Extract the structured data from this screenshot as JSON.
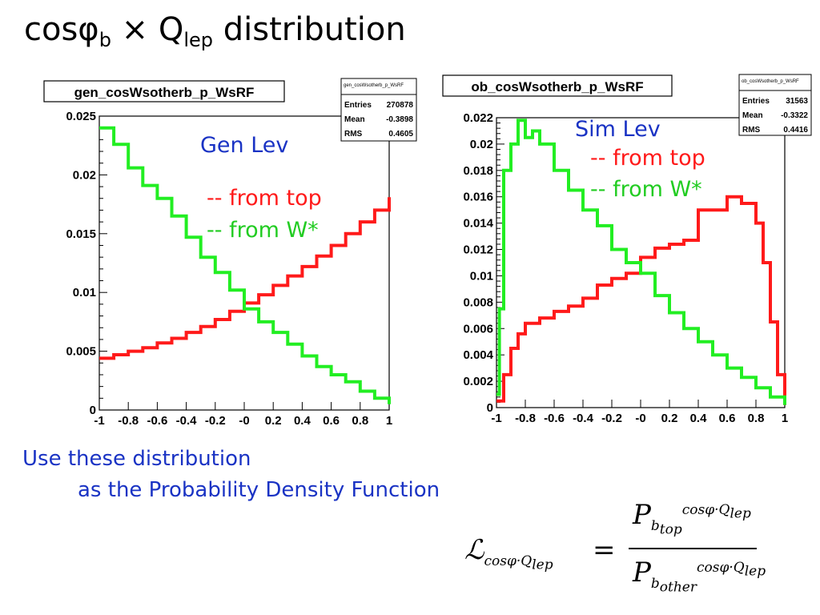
{
  "slide": {
    "title_main": "cosφ",
    "title_sub": "b",
    "title_x": " × Q",
    "title_sub2": "lep",
    "title_rest": " distribution",
    "body_line1": "Use these distribution",
    "body_line2": "as the Probability Density Function"
  },
  "colors": {
    "top": "#ff1a1a",
    "wstar": "#22ee22",
    "label_blue": "#1a33c4"
  },
  "formula": {
    "lhs": "ℒ",
    "lhs_sub": "cosφ·Q",
    "lhs_sub2": "lep",
    "eq": "=",
    "num_base": "P",
    "num_sup": "cosφ·Q",
    "num_sup2": "lep",
    "num_sub": "b",
    "num_sub2": "top",
    "den_base": "P",
    "den_sup": "cosφ·Q",
    "den_sup2": "lep",
    "den_sub": "b",
    "den_sub2": "other"
  },
  "chart_data": [
    {
      "type": "line",
      "title": "gen_cosWsotherb_p_WsRF",
      "annotation": "Gen Lev",
      "legend": [
        "-- from top",
        "-- from W*"
      ],
      "stats": {
        "name": "gen_cosWsotherb_p_WsRF",
        "rows": [
          [
            "Entries",
            "270878"
          ],
          [
            "Mean",
            "-0.3898"
          ],
          [
            "RMS",
            "0.4605"
          ]
        ]
      },
      "xlim": [
        -1,
        1
      ],
      "ylim": [
        0,
        0.025
      ],
      "xticks": [
        "-1",
        "-0.8",
        "-0.6",
        "-0.4",
        "-0.2",
        "-0",
        "0.2",
        "0.4",
        "0.6",
        "0.8",
        "1"
      ],
      "yticks": [
        "0",
        "0.005",
        "0.01",
        "0.015",
        "0.02",
        "0.025"
      ],
      "series": [
        {
          "name": "from top",
          "color": "#ff1a1a",
          "x": [
            -1,
            -0.9,
            -0.8,
            -0.7,
            -0.6,
            -0.5,
            -0.4,
            -0.3,
            -0.2,
            -0.1,
            0,
            0.1,
            0.2,
            0.3,
            0.4,
            0.5,
            0.6,
            0.7,
            0.8,
            0.9,
            1
          ],
          "values": [
            0.0044,
            0.0047,
            0.005,
            0.0053,
            0.0057,
            0.0061,
            0.0066,
            0.0071,
            0.0077,
            0.0084,
            0.0091,
            0.0098,
            0.0106,
            0.0114,
            0.0122,
            0.0131,
            0.014,
            0.015,
            0.016,
            0.017,
            0.0181
          ]
        },
        {
          "name": "from W*",
          "color": "#22ee22",
          "x": [
            -1,
            -0.9,
            -0.8,
            -0.7,
            -0.6,
            -0.5,
            -0.4,
            -0.3,
            -0.2,
            -0.1,
            0,
            0.1,
            0.2,
            0.3,
            0.4,
            0.5,
            0.6,
            0.7,
            0.8,
            0.9,
            1
          ],
          "values": [
            0.024,
            0.0226,
            0.0206,
            0.0191,
            0.018,
            0.0165,
            0.0147,
            0.013,
            0.0117,
            0.0102,
            0.0086,
            0.0075,
            0.0066,
            0.0056,
            0.0046,
            0.0037,
            0.003,
            0.0024,
            0.0016,
            0.001,
            0.0005
          ]
        }
      ]
    },
    {
      "type": "line",
      "title": "ob_cosWsotherb_p_WsRF",
      "annotation": "Sim Lev",
      "legend": [
        "-- from top",
        "-- from W*"
      ],
      "stats": {
        "name": "ob_cosWsotherb_p_WsRF",
        "rows": [
          [
            "Entries",
            "31563"
          ],
          [
            "Mean",
            "-0.3322"
          ],
          [
            "RMS",
            "0.4416"
          ]
        ]
      },
      "xlim": [
        -1,
        1
      ],
      "ylim": [
        0,
        0.022
      ],
      "xticks": [
        "-1",
        "-0.8",
        "-0.6",
        "-0.4",
        "-0.2",
        "-0",
        "0.2",
        "0.4",
        "0.6",
        "0.8",
        "1"
      ],
      "yticks": [
        "0",
        "0.002",
        "0.004",
        "0.006",
        "0.008",
        "0.01",
        "0.012",
        "0.014",
        "0.016",
        "0.018",
        "0.02",
        "0.022"
      ],
      "series": [
        {
          "name": "from top",
          "color": "#ff1a1a",
          "x": [
            -1,
            -0.95,
            -0.9,
            -0.85,
            -0.8,
            -0.7,
            -0.6,
            -0.5,
            -0.4,
            -0.3,
            -0.2,
            -0.1,
            0,
            0.1,
            0.2,
            0.3,
            0.4,
            0.5,
            0.6,
            0.7,
            0.8,
            0.85,
            0.9,
            0.95,
            1
          ],
          "values": [
            0.0005,
            0.0025,
            0.0045,
            0.0056,
            0.0064,
            0.0068,
            0.0073,
            0.0077,
            0.0083,
            0.0093,
            0.0098,
            0.0102,
            0.0114,
            0.0121,
            0.0124,
            0.0127,
            0.015,
            0.015,
            0.016,
            0.0155,
            0.014,
            0.011,
            0.0065,
            0.0025,
            0.0002
          ]
        },
        {
          "name": "from W*",
          "color": "#22ee22",
          "x": [
            -1,
            -0.98,
            -0.95,
            -0.9,
            -0.85,
            -0.8,
            -0.75,
            -0.7,
            -0.6,
            -0.5,
            -0.4,
            -0.3,
            -0.2,
            -0.1,
            0,
            0.1,
            0.2,
            0.3,
            0.4,
            0.5,
            0.6,
            0.7,
            0.8,
            0.9,
            1
          ],
          "values": [
            0.001,
            0.0075,
            0.018,
            0.02,
            0.0218,
            0.0205,
            0.021,
            0.02,
            0.018,
            0.0165,
            0.015,
            0.0138,
            0.012,
            0.011,
            0.0102,
            0.0085,
            0.0072,
            0.006,
            0.005,
            0.004,
            0.003,
            0.0023,
            0.0015,
            0.0008,
            0.0002
          ]
        }
      ]
    }
  ]
}
